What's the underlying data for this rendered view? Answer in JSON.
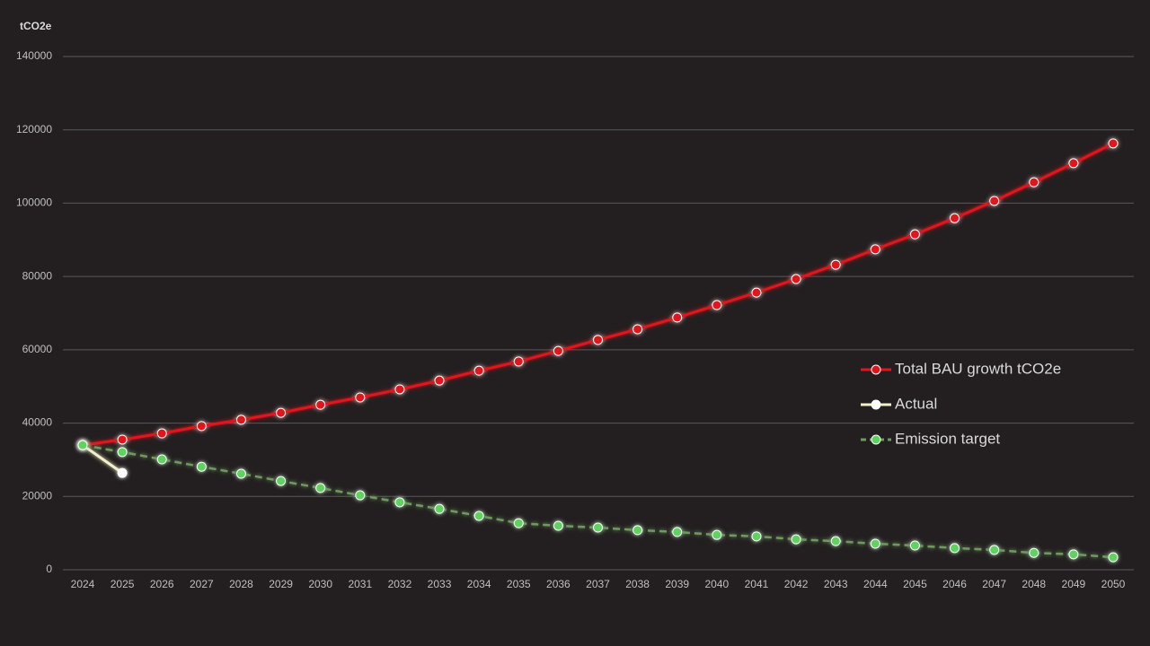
{
  "chart_data": {
    "type": "line",
    "y_axis_label": "tCO2e",
    "categories": [
      "2024",
      "2025",
      "2026",
      "2027",
      "2028",
      "2029",
      "2030",
      "2031",
      "2032",
      "2033",
      "2034",
      "2035",
      "2036",
      "2037",
      "2038",
      "2039",
      "2040",
      "2041",
      "2042",
      "2043",
      "2044",
      "2045",
      "2046",
      "2047",
      "2048",
      "2049",
      "2050"
    ],
    "series": [
      {
        "name": "Total BAU growth  tCO2e",
        "color": "#e0141e",
        "dashed": false,
        "values": [
          34000,
          35500,
          37200,
          39200,
          40900,
          42800,
          45000,
          47000,
          49200,
          51600,
          54300,
          56800,
          59700,
          62700,
          65600,
          68800,
          72200,
          75600,
          79300,
          83200,
          87400,
          91500,
          95900,
          100600,
          105700,
          110900,
          116300
        ]
      },
      {
        "name": "Actual",
        "color": "#ffffff",
        "line_color": "#f2f0c8",
        "dashed": false,
        "values": [
          34000,
          26400,
          null,
          null,
          null,
          null,
          null,
          null,
          null,
          null,
          null,
          null,
          null,
          null,
          null,
          null,
          null,
          null,
          null,
          null,
          null,
          null,
          null,
          null,
          null,
          null,
          null
        ]
      },
      {
        "name": "Emission target",
        "color": "#5ed25e",
        "line_color": "#6e9a5e",
        "dashed": true,
        "values": [
          34000,
          32100,
          30100,
          28100,
          26200,
          24200,
          22300,
          20300,
          18400,
          16600,
          14700,
          12700,
          12000,
          11500,
          10800,
          10300,
          9500,
          9100,
          8300,
          7800,
          7100,
          6600,
          5900,
          5400,
          4600,
          4200,
          3400
        ]
      }
    ],
    "ylim": [
      0,
      140000
    ],
    "yticks": [
      0,
      20000,
      40000,
      60000,
      80000,
      100000,
      120000,
      140000
    ],
    "grid": true,
    "legend": "right"
  }
}
